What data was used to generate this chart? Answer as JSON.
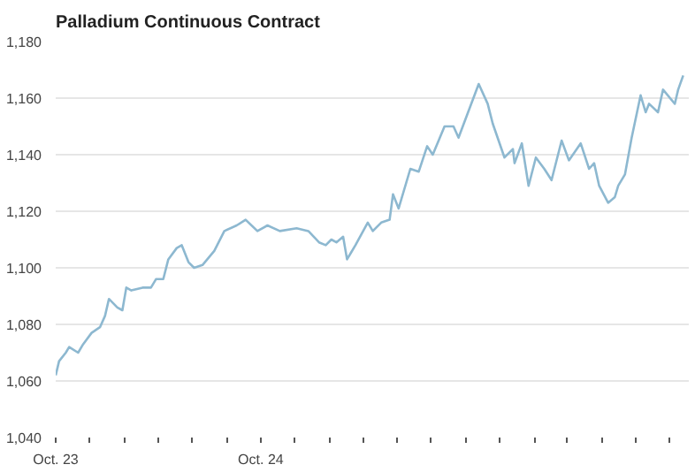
{
  "chart_data": {
    "type": "line",
    "title": "Palladium Continuous Contract",
    "x": [
      "2023-10-01",
      "2023-10-07",
      "2023-10-19",
      "2023-10-25",
      "2023-11-10",
      "2023-11-19",
      "2023-12-04",
      "2023-12-19",
      "2023-12-28",
      "2024-01-04",
      "2024-01-19",
      "2024-01-28",
      "2024-02-04",
      "2024-02-13",
      "2024-03-04",
      "2024-03-19",
      "2024-03-28",
      "2024-04-10",
      "2024-04-19",
      "2024-05-04",
      "2024-05-13",
      "2024-05-25",
      "2024-06-04",
      "2024-06-19",
      "2024-07-10",
      "2024-07-28",
      "2024-08-19",
      "2024-09-04",
      "2024-09-25",
      "2024-10-13",
      "2024-11-04",
      "2024-12-04",
      "2024-12-25",
      "2025-01-13",
      "2025-01-25",
      "2025-02-04",
      "2025-02-13",
      "2025-02-25",
      "2025-03-04",
      "2025-03-10",
      "2025-03-19",
      "2025-04-10",
      "2025-04-19",
      "2025-05-04",
      "2025-05-19",
      "2025-05-25",
      "2025-06-04",
      "2025-06-25",
      "2025-07-10",
      "2025-07-25",
      "2025-08-04",
      "2025-08-25",
      "2025-09-10",
      "2025-09-19",
      "2025-10-25",
      "2025-11-10",
      "2025-11-19",
      "2025-12-10",
      "2025-12-25",
      "2025-12-28",
      "2026-01-10",
      "2026-01-22",
      "2026-02-04",
      "2026-02-19",
      "2026-03-04",
      "2026-03-22",
      "2026-04-04",
      "2026-04-25",
      "2026-05-10",
      "2026-05-19",
      "2026-05-28",
      "2026-06-13",
      "2026-06-25",
      "2026-07-01",
      "2026-07-13",
      "2026-07-25",
      "2026-08-10",
      "2026-08-19",
      "2026-08-25",
      "2026-09-10",
      "2026-09-19",
      "2026-10-10",
      "2026-10-16",
      "2026-10-25"
    ],
    "series": [
      {
        "color": "#8db8d0",
        "values": [
          1062,
          1067,
          1070,
          1072,
          1070,
          1073,
          1077,
          1079,
          1083,
          1089,
          1086,
          1085,
          1093,
          1092,
          1093,
          1093,
          1096,
          1096,
          1103,
          1107,
          1108,
          1102,
          1100,
          1101,
          1106,
          1113,
          1115,
          1117,
          1113,
          1115,
          1113,
          1114,
          1113,
          1109,
          1108,
          1110,
          1109,
          1111,
          1103,
          1105,
          1108,
          1116,
          1113,
          1116,
          1117,
          1126,
          1121,
          1135,
          1134,
          1143,
          1140,
          1150,
          1150,
          1146,
          1165,
          1158,
          1151,
          1139,
          1142,
          1137,
          1144,
          1129,
          1139,
          1135,
          1131,
          1145,
          1138,
          1144,
          1135,
          1137,
          1129,
          1123,
          1125,
          1129,
          1133,
          1146,
          1161,
          1155,
          1158,
          1155,
          1163,
          1158,
          1163,
          1168
        ]
      }
    ],
    "xlim": [
      "2023-10-01",
      "2026-11-04"
    ],
    "ylim": [
      1040,
      1180
    ],
    "xticks": [
      {
        "value": "2023-10-01",
        "label": "Oct. 23"
      },
      {
        "value": "2023-12-01",
        "label": null
      },
      {
        "value": "2024-02-01",
        "label": null
      },
      {
        "value": "2024-04-01",
        "label": null
      },
      {
        "value": "2024-06-01",
        "label": null
      },
      {
        "value": "2024-08-01",
        "label": null
      },
      {
        "value": "2024-10-01",
        "label": "Oct. 24"
      },
      {
        "value": "2024-12-01",
        "label": null
      },
      {
        "value": "2025-02-01",
        "label": null
      },
      {
        "value": "2025-04-01",
        "label": null
      },
      {
        "value": "2025-06-01",
        "label": null
      },
      {
        "value": "2025-08-01",
        "label": null
      },
      {
        "value": "2025-10-01",
        "label": null
      },
      {
        "value": "2025-12-01",
        "label": null
      },
      {
        "value": "2026-02-01",
        "label": null
      },
      {
        "value": "2026-04-01",
        "label": null
      },
      {
        "value": "2026-06-01",
        "label": null
      },
      {
        "value": "2026-08-01",
        "label": null
      },
      {
        "value": "2026-10-01",
        "label": null
      }
    ],
    "yticks": [
      {
        "value": 1040,
        "label": "1,040"
      },
      {
        "value": 1060,
        "label": "1,060"
      },
      {
        "value": 1080,
        "label": "1,080"
      },
      {
        "value": 1100,
        "label": "1,100"
      },
      {
        "value": 1120,
        "label": "1,120"
      },
      {
        "value": 1140,
        "label": "1,140"
      },
      {
        "value": 1160,
        "label": "1,160"
      },
      {
        "value": 1180,
        "label": "1,180"
      }
    ],
    "grid": "y",
    "marker": "none",
    "line_style": "solid"
  }
}
